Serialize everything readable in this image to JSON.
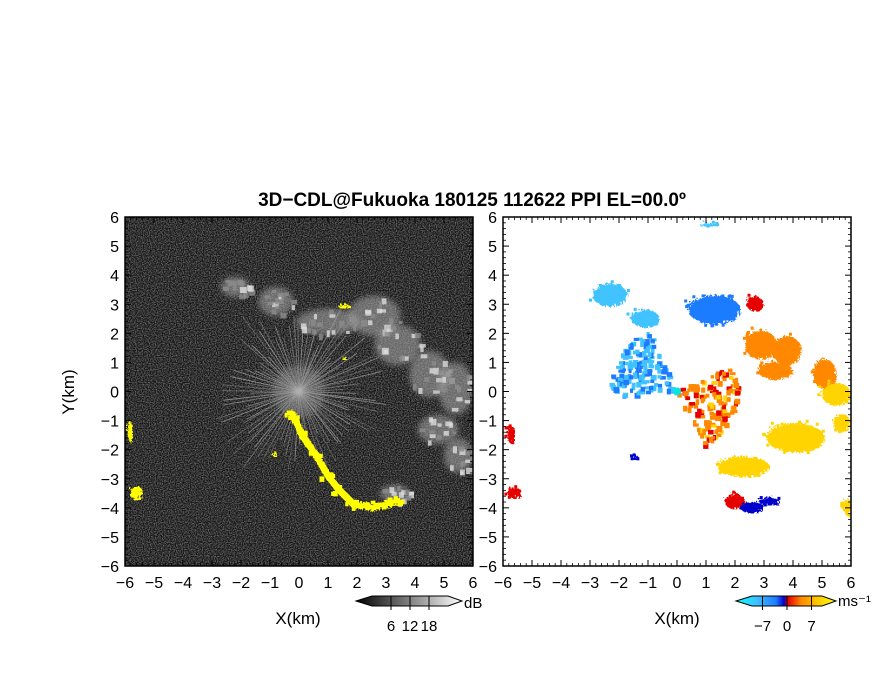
{
  "title": "3D−CDL@Fukuoka 180125 112622 PPI EL=00.0º",
  "chart_data": [
    {
      "type": "heatmap",
      "panel": "left",
      "xlabel": "X(km)",
      "ylabel": "Y(km)",
      "xlim": [
        -6,
        6
      ],
      "ylim": [
        -6,
        6
      ],
      "xticks": [
        "−6",
        "−5",
        "−4",
        "−3",
        "−2",
        "−1",
        "0",
        "1",
        "2",
        "3",
        "4",
        "5",
        "6"
      ],
      "yticks": [
        "−6",
        "−5",
        "−4",
        "−3",
        "−2",
        "−1",
        "0",
        "1",
        "2",
        "3",
        "4",
        "5",
        "6"
      ],
      "colormap": "grayscale",
      "colorbar": {
        "unit": "dB",
        "ticks": [
          "6",
          "12",
          "18"
        ],
        "range": [
          0,
          24
        ]
      },
      "highlight_color": "#ffff00",
      "background_color": "#111111",
      "features": {
        "echo_clusters": [
          {
            "x": -2.2,
            "y": 3.6,
            "rx": 0.5,
            "ry": 0.35
          },
          {
            "x": -0.8,
            "y": 3.1,
            "rx": 0.6,
            "ry": 0.5
          },
          {
            "x": 1.0,
            "y": 2.4,
            "rx": 1.1,
            "ry": 0.45
          },
          {
            "x": 2.6,
            "y": 2.6,
            "rx": 0.9,
            "ry": 0.7
          },
          {
            "x": 3.4,
            "y": 1.6,
            "rx": 0.8,
            "ry": 0.7
          },
          {
            "x": 4.5,
            "y": 0.6,
            "rx": 0.7,
            "ry": 0.8
          },
          {
            "x": 5.4,
            "y": 0.1,
            "rx": 0.6,
            "ry": 0.9
          },
          {
            "x": 4.8,
            "y": -1.3,
            "rx": 0.7,
            "ry": 0.5
          },
          {
            "x": 5.5,
            "y": -2.2,
            "rx": 0.5,
            "ry": 0.6
          },
          {
            "x": 3.3,
            "y": -3.5,
            "rx": 0.5,
            "ry": 0.3
          }
        ],
        "yellow_band": [
          [
            -0.3,
            -0.7
          ],
          [
            0.0,
            -1.4
          ],
          [
            0.5,
            -2.1
          ],
          [
            0.9,
            -2.8
          ],
          [
            1.3,
            -3.3
          ],
          [
            1.8,
            -3.8
          ],
          [
            2.4,
            -3.9
          ],
          [
            2.9,
            -3.8
          ],
          [
            3.3,
            -3.7
          ]
        ],
        "yellow_patches": [
          {
            "x": -5.9,
            "y": -1.3,
            "rx": 0.12,
            "ry": 0.35
          },
          {
            "x": -5.7,
            "y": -3.4,
            "rx": 0.22,
            "ry": 0.25
          },
          {
            "x": -0.9,
            "y": -2.1,
            "rx": 0.1,
            "ry": 0.1
          },
          {
            "x": 1.5,
            "y": 3.0,
            "rx": 0.2,
            "ry": 0.1
          },
          {
            "x": 1.5,
            "y": 1.2,
            "rx": 0.1,
            "ry": 0.08
          }
        ],
        "ray_count": 90,
        "ray_length_km": 2.6
      }
    },
    {
      "type": "heatmap",
      "panel": "right",
      "xlabel": "X(km)",
      "ylabel": "",
      "xlim": [
        -6,
        6
      ],
      "ylim": [
        -6,
        6
      ],
      "xticks": [
        "−6",
        "−5",
        "−4",
        "−3",
        "−2",
        "−1",
        "0",
        "1",
        "2",
        "3",
        "4",
        "5",
        "6"
      ],
      "colormap": "diverging velocity",
      "colorbar": {
        "unit": "ms⁻¹",
        "ticks": [
          "−7",
          "0",
          "7"
        ],
        "range": [
          -10,
          10
        ]
      },
      "palette": {
        "strong_away": "#0000cc",
        "away": "#1e7bff",
        "weak_away": "#3fc3ff",
        "weak_toward": "#ffd400",
        "toward": "#ff8800",
        "strong_toward": "#e60000"
      },
      "features": {
        "blue_fan": {
          "center_angle_deg": 150,
          "spread_deg": 70,
          "length_km": 2.2
        },
        "orange_fan": {
          "center_angle_deg": -20,
          "spread_deg": 90,
          "length_km": 2.0
        },
        "clusters": [
          {
            "x": -2.4,
            "y": 3.4,
            "rx": 0.6,
            "ry": 0.4,
            "c": "weak_away"
          },
          {
            "x": -1.2,
            "y": 2.6,
            "rx": 0.5,
            "ry": 0.3,
            "c": "weak_away"
          },
          {
            "x": 1.2,
            "y": 2.9,
            "rx": 0.9,
            "ry": 0.5,
            "c": "away"
          },
          {
            "x": 2.6,
            "y": 3.1,
            "rx": 0.3,
            "ry": 0.25,
            "c": "strong_toward"
          },
          {
            "x": 2.8,
            "y": 1.7,
            "rx": 0.55,
            "ry": 0.5,
            "c": "toward"
          },
          {
            "x": 3.7,
            "y": 1.5,
            "rx": 0.5,
            "ry": 0.5,
            "c": "toward"
          },
          {
            "x": 3.3,
            "y": 0.8,
            "rx": 0.6,
            "ry": 0.3,
            "c": "toward"
          },
          {
            "x": 5.0,
            "y": 0.7,
            "rx": 0.4,
            "ry": 0.5,
            "c": "toward"
          },
          {
            "x": 5.4,
            "y": 0.0,
            "rx": 0.5,
            "ry": 0.4,
            "c": "weak_toward"
          },
          {
            "x": 4.0,
            "y": -1.5,
            "rx": 1.0,
            "ry": 0.5,
            "c": "weak_toward"
          },
          {
            "x": 2.2,
            "y": -2.5,
            "rx": 0.9,
            "ry": 0.35,
            "c": "weak_toward"
          },
          {
            "x": 5.6,
            "y": -1.0,
            "rx": 0.3,
            "ry": 0.3,
            "c": "weak_toward"
          },
          {
            "x": 5.8,
            "y": -3.9,
            "rx": 0.15,
            "ry": 0.3,
            "c": "weak_toward"
          },
          {
            "x": -5.8,
            "y": -1.4,
            "rx": 0.15,
            "ry": 0.3,
            "c": "strong_toward"
          },
          {
            "x": -5.7,
            "y": -3.4,
            "rx": 0.25,
            "ry": 0.2,
            "c": "strong_toward"
          },
          {
            "x": 1.9,
            "y": -3.7,
            "rx": 0.35,
            "ry": 0.25,
            "c": "strong_toward"
          },
          {
            "x": 2.5,
            "y": -3.9,
            "rx": 0.4,
            "ry": 0.2,
            "c": "strong_away"
          },
          {
            "x": 3.1,
            "y": -3.7,
            "rx": 0.35,
            "ry": 0.15,
            "c": "strong_away"
          },
          {
            "x": -1.5,
            "y": -2.2,
            "rx": 0.12,
            "ry": 0.1,
            "c": "strong_away"
          },
          {
            "x": 1.0,
            "y": 5.8,
            "rx": 0.3,
            "ry": 0.08,
            "c": "weak_away"
          }
        ]
      }
    }
  ]
}
